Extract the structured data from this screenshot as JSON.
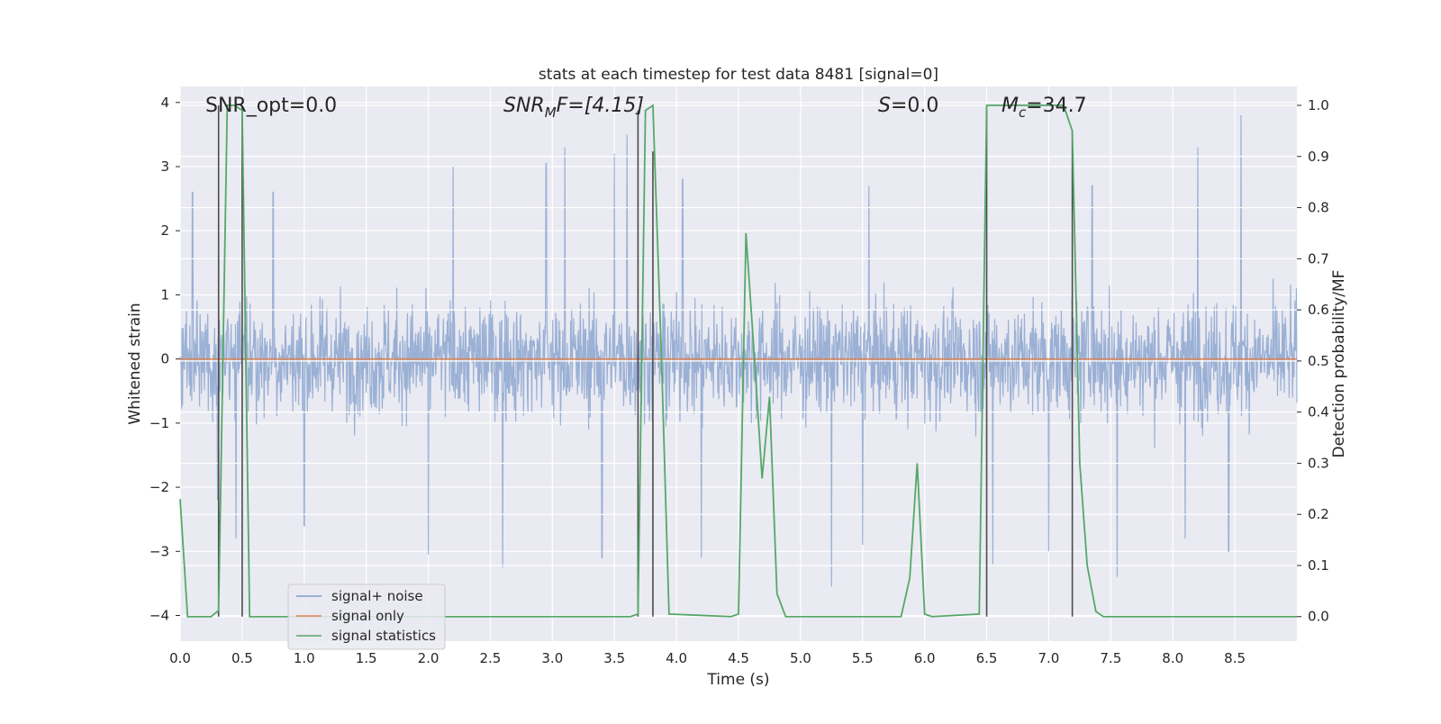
{
  "chart_data": {
    "type": "line",
    "title": "stats at each timestep for test data 8481 [signal=0]",
    "xlabel": "Time (s)",
    "ylabel_left": "Whitened strain",
    "ylabel_right": "Detection probability/MF",
    "xlim": [
      0,
      9
    ],
    "ylim_left": [
      -4.4,
      4.25
    ],
    "ylim_right": [
      -0.048,
      1.037
    ],
    "grid": true,
    "legend_position": "lower-left",
    "x_ticks": [
      "0.0",
      "0.5",
      "1.0",
      "1.5",
      "2.0",
      "2.5",
      "3.0",
      "3.5",
      "4.0",
      "4.5",
      "5.0",
      "5.5",
      "6.0",
      "6.5",
      "7.0",
      "7.5",
      "8.0",
      "8.5"
    ],
    "y_ticks_left": [
      "4",
      "3",
      "2",
      "1",
      "0",
      "−1",
      "−2",
      "−3",
      "−4"
    ],
    "y_ticks_right": [
      "1.0",
      "0.9",
      "0.8",
      "0.7",
      "0.6",
      "0.5",
      "0.4",
      "0.3",
      "0.2",
      "0.1",
      "0.0"
    ],
    "annotations": {
      "snr_opt": "SNR_opt=0.0",
      "snr_mf_main": "SNR",
      "snr_mf_sub": "M",
      "snr_mf_rest": "F=[4.15]",
      "s_main": "S",
      "s_rest": "=0.0",
      "mc_main": "M",
      "mc_sub": "c",
      "mc_rest": "=34.7"
    },
    "series": [
      {
        "name": "signal+ noise",
        "color": "#7f9ccb",
        "axis": "left",
        "description_envelope": {
          "typical_range": [
            -1.7,
            1.7
          ],
          "upper_peaks": [
            [
              0.1,
              2.6
            ],
            [
              0.45,
              2.7
            ],
            [
              0.75,
              2.6
            ],
            [
              1.0,
              3.05
            ],
            [
              2.2,
              3.0
            ],
            [
              2.95,
              3.05
            ],
            [
              3.1,
              3.3
            ],
            [
              3.5,
              3.2
            ],
            [
              3.6,
              3.5
            ],
            [
              4.05,
              2.8
            ],
            [
              5.55,
              2.7
            ],
            [
              6.55,
              3.05
            ],
            [
              7.35,
              2.7
            ],
            [
              8.2,
              3.3
            ],
            [
              8.55,
              3.8
            ]
          ],
          "lower_peaks": [
            [
              0.3,
              -2.2
            ],
            [
              0.45,
              -2.8
            ],
            [
              1.0,
              -2.6
            ],
            [
              2.0,
              -3.05
            ],
            [
              2.6,
              -3.25
            ],
            [
              3.4,
              -3.1
            ],
            [
              4.2,
              -3.1
            ],
            [
              5.25,
              -3.55
            ],
            [
              5.5,
              -2.9
            ],
            [
              6.55,
              -3.2
            ],
            [
              7.0,
              -3.0
            ],
            [
              7.55,
              -3.4
            ],
            [
              8.1,
              -2.8
            ],
            [
              8.45,
              -3.0
            ]
          ]
        }
      },
      {
        "name": "signal only",
        "color": "#dd8452",
        "axis": "left",
        "x": [
          0,
          9
        ],
        "y": [
          0,
          0
        ]
      },
      {
        "name": "signal statistics",
        "color": "#55a868",
        "axis": "right",
        "x": [
          0,
          0.06,
          0.25,
          0.31,
          0.38,
          0.44,
          0.5,
          0.56,
          3.63,
          3.69,
          3.75,
          3.81,
          3.88,
          3.94,
          4.44,
          4.5,
          4.56,
          4.63,
          4.69,
          4.75,
          4.81,
          4.88,
          5.81,
          5.88,
          5.94,
          6.0,
          6.06,
          6.44,
          6.5,
          6.56,
          7.12,
          7.19,
          7.25,
          7.31,
          7.38,
          7.44,
          9.0
        ],
        "y": [
          0.23,
          0.0,
          0.0,
          0.012,
          1.0,
          1.0,
          0.99,
          0.0,
          0.0,
          0.005,
          0.99,
          1.0,
          0.5,
          0.005,
          0.0,
          0.005,
          0.75,
          0.5,
          0.27,
          0.43,
          0.045,
          0.0,
          0.0,
          0.075,
          0.3,
          0.005,
          0.0,
          0.005,
          1.0,
          1.0,
          1.0,
          0.95,
          0.3,
          0.1,
          0.01,
          0.0,
          0.0
        ]
      }
    ],
    "vertical_lines": [
      {
        "x": 0.31,
        "y_top": 1.0
      },
      {
        "x": 0.5,
        "y_top": 1.0
      },
      {
        "x": 3.69,
        "y_top": 0.99
      },
      {
        "x": 3.81,
        "y_top": 0.91
      },
      {
        "x": 6.5,
        "y_top": 0.99
      },
      {
        "x": 7.19,
        "y_top": 0.95
      }
    ],
    "colors": {
      "plot_background": "#eaeaf2",
      "grid": "#ffffff",
      "vertical_lines": "#4c4c4c"
    }
  }
}
